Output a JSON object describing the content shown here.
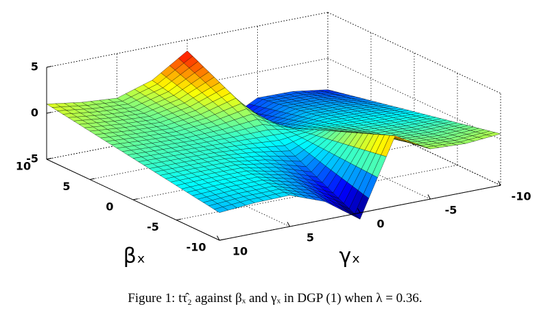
{
  "chart_data": {
    "type": "surface",
    "x_label": "βₓ",
    "y_label": "γₓ",
    "caption": "Figure 1: tτ̂₂ against βₓ and γₓ in DGP (1) when λ = 0.36.",
    "x": [
      -10,
      -7.5,
      -5,
      -2.5,
      0,
      2.5,
      5,
      7.5,
      10
    ],
    "y": [
      -10,
      -7.5,
      -5,
      -2.5,
      0,
      2.5,
      5,
      7.5,
      10
    ],
    "z": [
      [
        0.6,
        0.28,
        0.45,
        2.63,
        -5.7,
        -3.03,
        -1.6,
        -1.68,
        -2.0
      ],
      [
        0.1,
        -0.12,
        0.04,
        1.7,
        -4.51,
        -2.48,
        -1.38,
        -1.41,
        -1.63
      ],
      [
        -0.4,
        -0.51,
        -0.36,
        0.78,
        -3.33,
        -1.93,
        -1.16,
        -1.14,
        -1.25
      ],
      [
        -0.9,
        -0.9,
        -0.77,
        -0.14,
        -2.14,
        -1.38,
        -0.94,
        -0.88,
        -0.88
      ],
      [
        -1.4,
        -1.29,
        -1.18,
        -1.06,
        -0.95,
        -0.84,
        -0.73,
        -0.61,
        -0.5
      ],
      [
        -1.9,
        -1.68,
        -1.58,
        -1.98,
        0.24,
        -0.29,
        -0.51,
        -0.35,
        -0.13
      ],
      [
        -2.4,
        -2.07,
        -1.99,
        -2.91,
        1.43,
        0.26,
        -0.29,
        -0.08,
        0.25
      ],
      [
        -2.9,
        -2.46,
        -2.39,
        -3.83,
        2.61,
        0.8,
        -0.07,
        0.18,
        0.63
      ],
      [
        -3.4,
        -2.85,
        -2.8,
        -4.75,
        3.8,
        1.35,
        0.15,
        0.45,
        1.0
      ]
    ],
    "xlim": [
      -10,
      10
    ],
    "xticks": [
      -10,
      -5,
      0,
      5,
      10
    ],
    "ylim": [
      -10,
      10
    ],
    "yticks": [
      -10,
      -5,
      0,
      5,
      10
    ],
    "zlim": [
      -5,
      5
    ],
    "zticks": [
      -5,
      0,
      5
    ],
    "colormap": "jet",
    "grid": true
  }
}
